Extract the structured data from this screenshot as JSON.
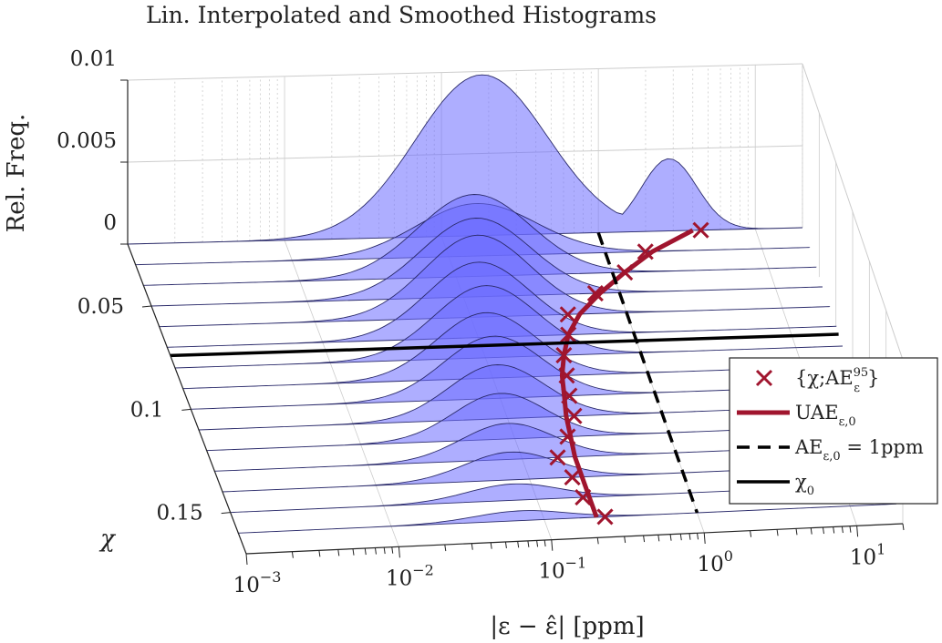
{
  "chart_data": {
    "type": "3d-waterfall",
    "title": "Lin. Interpolated and Smoothed Histograms",
    "xlabel": "|ε − ε̂| [ppm]",
    "ylabel": "χ",
    "zlabel": "Rel. Freq.",
    "x_scale": "log",
    "xlim": [
      0.001,
      20
    ],
    "ylim": [
      0.02,
      0.17
    ],
    "zlim": [
      0,
      0.01
    ],
    "x_ticks": [
      {
        "value": 0.001,
        "label": "10−3"
      },
      {
        "value": 0.01,
        "label": "10−2"
      },
      {
        "value": 0.1,
        "label": "10−1"
      },
      {
        "value": 1,
        "label": "100"
      },
      {
        "value": 10,
        "label": "101"
      }
    ],
    "y_ticks": [
      {
        "value": 0.05,
        "label": "0.05"
      },
      {
        "value": 0.1,
        "label": "0.1"
      },
      {
        "value": 0.15,
        "label": "0.15"
      }
    ],
    "z_ticks": [
      {
        "value": 0,
        "label": "0"
      },
      {
        "value": 0.005,
        "label": "0.005"
      },
      {
        "value": 0.01,
        "label": "0.01"
      }
    ],
    "colors": {
      "histogram_fill": "#6b6bff",
      "histogram_edge": "#2a2a6a",
      "uae": "#a0152e",
      "markers": "#a0152e",
      "ae_line": "#000000",
      "chi0_line": "#000000",
      "grid": "#cccccc"
    },
    "histograms": [
      {
        "chi": 0.02,
        "peak_x": 0.18,
        "height": 0.0098,
        "width": 0.42
      },
      {
        "chi": 0.03,
        "peak_x": 0.15,
        "height": 0.0032,
        "width": 0.38
      },
      {
        "chi": 0.04,
        "peak_x": 0.13,
        "height": 0.005,
        "width": 0.36
      },
      {
        "chi": 0.05,
        "peak_x": 0.12,
        "height": 0.0048,
        "width": 0.35
      },
      {
        "chi": 0.06,
        "peak_x": 0.11,
        "height": 0.005,
        "width": 0.34
      },
      {
        "chi": 0.07,
        "peak_x": 0.1,
        "height": 0.0046,
        "width": 0.33
      },
      {
        "chi": 0.08,
        "peak_x": 0.1,
        "height": 0.0044,
        "width": 0.33
      },
      {
        "chi": 0.09,
        "peak_x": 0.09,
        "height": 0.004,
        "width": 0.32
      },
      {
        "chi": 0.1,
        "peak_x": 0.09,
        "height": 0.0038,
        "width": 0.32
      },
      {
        "chi": 0.11,
        "peak_x": 0.085,
        "height": 0.0033,
        "width": 0.31
      },
      {
        "chi": 0.12,
        "peak_x": 0.08,
        "height": 0.0028,
        "width": 0.3
      },
      {
        "chi": 0.13,
        "peak_x": 0.08,
        "height": 0.0022,
        "width": 0.3
      },
      {
        "chi": 0.14,
        "peak_x": 0.075,
        "height": 0.0017,
        "width": 0.3
      },
      {
        "chi": 0.15,
        "peak_x": 0.07,
        "height": 0.001,
        "width": 0.3
      },
      {
        "chi": 0.16,
        "peak_x": 0.07,
        "height": 0.0006,
        "width": 0.3
      }
    ],
    "series": [
      {
        "name": "{χ;AE_ε^95}",
        "type": "marker",
        "x": [
          4.5,
          1.8,
          1.2,
          0.7,
          0.42,
          0.38,
          0.32,
          0.3,
          0.28,
          0.27,
          0.22,
          0.17,
          0.19,
          0.2,
          0.25
        ],
        "y": [
          0.02,
          0.03,
          0.04,
          0.05,
          0.06,
          0.07,
          0.08,
          0.09,
          0.1,
          0.11,
          0.12,
          0.13,
          0.14,
          0.15,
          0.16
        ]
      },
      {
        "name": "UAE_{ε,0}",
        "type": "line",
        "x": [
          4.0,
          2.0,
          1.2,
          0.75,
          0.5,
          0.38,
          0.32,
          0.28,
          0.26,
          0.24,
          0.23,
          0.22,
          0.22,
          0.22,
          0.22
        ],
        "y": [
          0.02,
          0.03,
          0.04,
          0.05,
          0.06,
          0.07,
          0.08,
          0.09,
          0.1,
          0.11,
          0.12,
          0.13,
          0.14,
          0.15,
          0.16
        ]
      },
      {
        "name": "AE_{ε,0} = 1ppm",
        "type": "dashed",
        "x": [
          1,
          1
        ],
        "y": [
          0.02,
          0.16
        ]
      },
      {
        "name": "χ_0",
        "type": "line",
        "y_value": 0.074
      }
    ],
    "legend": {
      "placement": "right",
      "entries": [
        {
          "kind": "marker",
          "text": "{χ;AE",
          "sup": "95",
          "sub": "ε",
          "tail": "}"
        },
        {
          "kind": "solid-red",
          "text": "UAE",
          "sub": "ε,0",
          "tail": ""
        },
        {
          "kind": "dashed",
          "text": "AE",
          "sub": "ε,0",
          "tail": " = 1ppm"
        },
        {
          "kind": "solid-black",
          "text": "χ",
          "sub": "0",
          "tail": ""
        }
      ]
    }
  }
}
